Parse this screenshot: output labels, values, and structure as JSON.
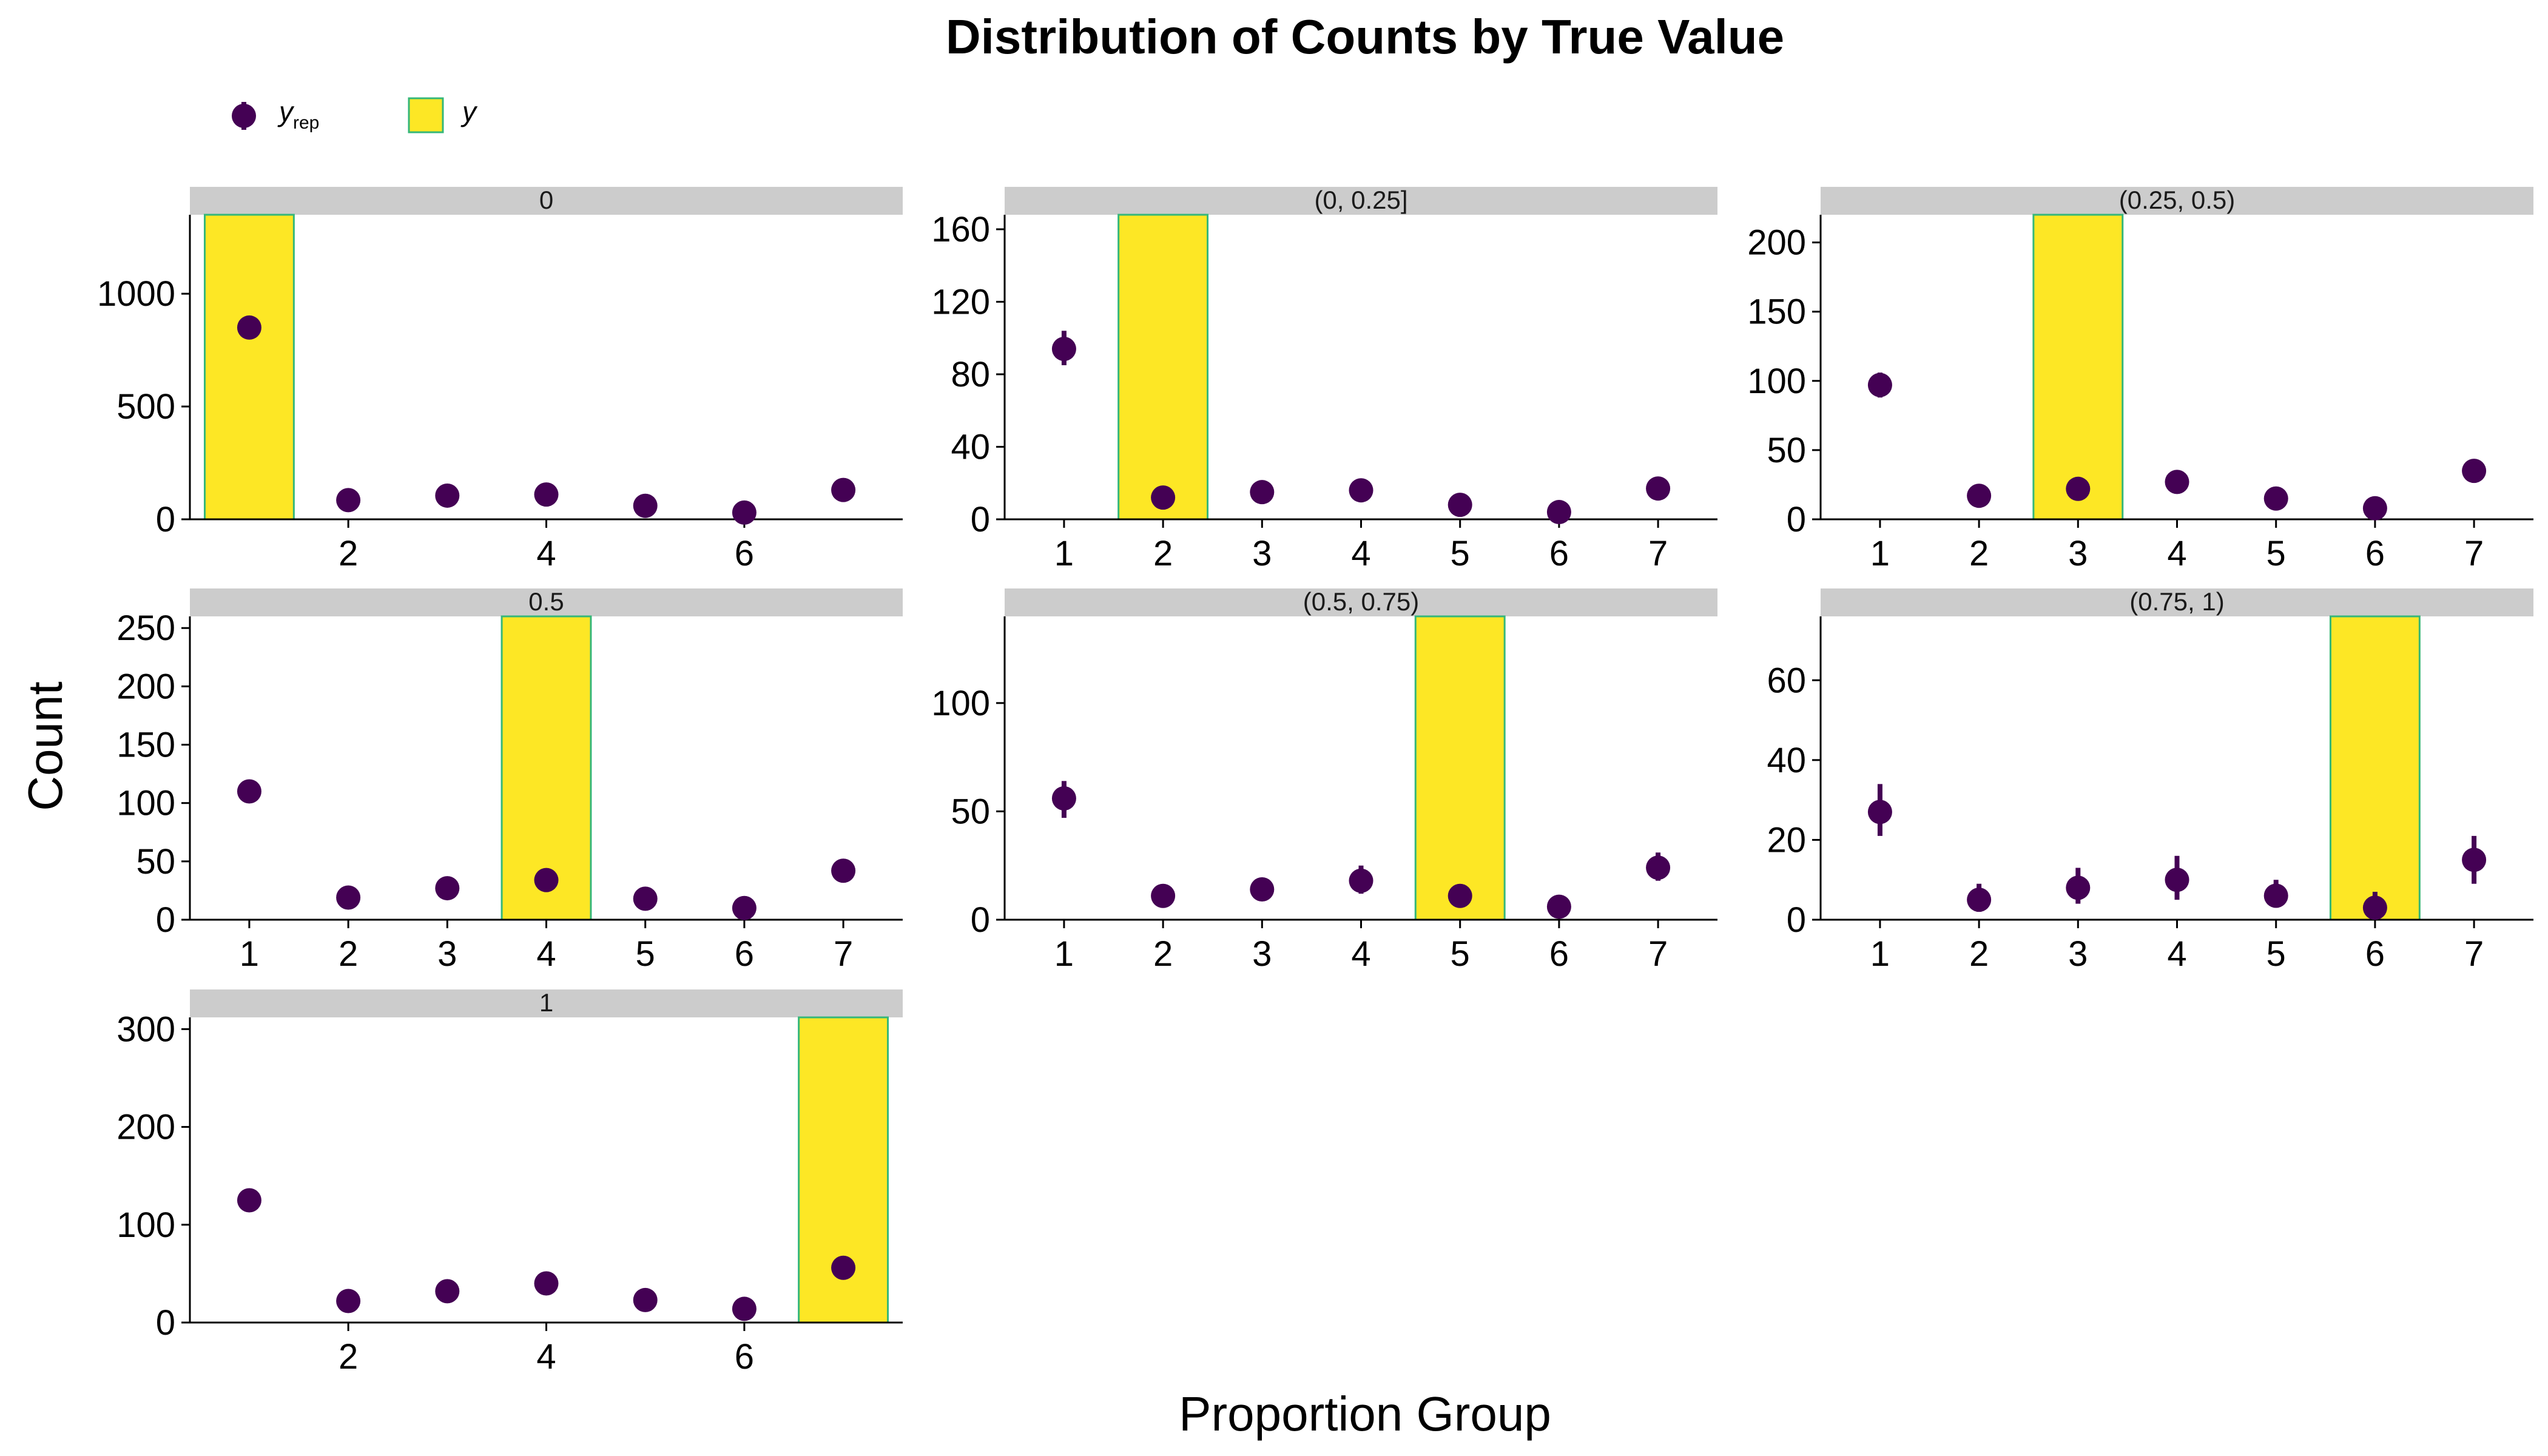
{
  "title": "Distribution of Counts by True Value",
  "xlabel": "Proportion Group",
  "ylabel": "Count",
  "legend": {
    "position": "top-left",
    "items": [
      {
        "key": "yrep",
        "label_main": "y",
        "label_sub": "rep",
        "color": "#440154",
        "kind": "point-range"
      },
      {
        "key": "y",
        "label_main": "y",
        "label_sub": "",
        "color": "#FDE725",
        "border": "#35B779",
        "kind": "bar"
      }
    ]
  },
  "colors": {
    "point": "#440154",
    "bar_fill": "#FDE725",
    "bar_border": "#35B779",
    "strip": "#CCCCCC"
  },
  "chart_data": [
    {
      "type": "bar+pointrange",
      "facet": "0",
      "ylim": [
        0,
        1350
      ],
      "yticks": [
        0,
        500,
        1000
      ],
      "xticks": [
        2,
        4,
        6
      ],
      "xlim": [
        0.4,
        7.6
      ],
      "bar": {
        "x": 1,
        "value": 1350
      },
      "points": [
        {
          "x": 1,
          "y": 850,
          "lo": 835,
          "hi": 865
        },
        {
          "x": 2,
          "y": 85,
          "lo": 78,
          "hi": 92
        },
        {
          "x": 3,
          "y": 105,
          "lo": 97,
          "hi": 113
        },
        {
          "x": 4,
          "y": 110,
          "lo": 102,
          "hi": 118
        },
        {
          "x": 5,
          "y": 60,
          "lo": 54,
          "hi": 66
        },
        {
          "x": 6,
          "y": 30,
          "lo": 26,
          "hi": 34
        },
        {
          "x": 7,
          "y": 130,
          "lo": 121,
          "hi": 139
        }
      ]
    },
    {
      "type": "bar+pointrange",
      "facet": "(0, 0.25]",
      "ylim": [
        0,
        168
      ],
      "yticks": [
        0,
        40,
        80,
        120,
        160
      ],
      "xticks": [
        1,
        2,
        3,
        4,
        5,
        6,
        7
      ],
      "xlim": [
        0.4,
        7.6
      ],
      "bar": {
        "x": 2,
        "value": 168
      },
      "points": [
        {
          "x": 1,
          "y": 94,
          "lo": 85,
          "hi": 104
        },
        {
          "x": 2,
          "y": 12,
          "lo": 9,
          "hi": 15
        },
        {
          "x": 3,
          "y": 15,
          "lo": 10,
          "hi": 20
        },
        {
          "x": 4,
          "y": 16,
          "lo": 11,
          "hi": 21
        },
        {
          "x": 5,
          "y": 8,
          "lo": 5,
          "hi": 11
        },
        {
          "x": 6,
          "y": 4,
          "lo": 2,
          "hi": 6
        },
        {
          "x": 7,
          "y": 17,
          "lo": 12,
          "hi": 23
        }
      ]
    },
    {
      "type": "bar+pointrange",
      "facet": "(0.25, 0.5)",
      "ylim": [
        0,
        220
      ],
      "yticks": [
        0,
        50,
        100,
        150,
        200
      ],
      "xticks": [
        1,
        2,
        3,
        4,
        5,
        6,
        7
      ],
      "xlim": [
        0.4,
        7.6
      ],
      "bar": {
        "x": 3,
        "value": 220
      },
      "points": [
        {
          "x": 1,
          "y": 97,
          "lo": 88,
          "hi": 106
        },
        {
          "x": 2,
          "y": 17,
          "lo": 13,
          "hi": 21
        },
        {
          "x": 3,
          "y": 22,
          "lo": 18,
          "hi": 26
        },
        {
          "x": 4,
          "y": 27,
          "lo": 22,
          "hi": 32
        },
        {
          "x": 5,
          "y": 15,
          "lo": 11,
          "hi": 19
        },
        {
          "x": 6,
          "y": 8,
          "lo": 5,
          "hi": 11
        },
        {
          "x": 7,
          "y": 35,
          "lo": 28,
          "hi": 42
        }
      ]
    },
    {
      "type": "bar+pointrange",
      "facet": "0.5",
      "ylim": [
        0,
        260
      ],
      "yticks": [
        0,
        50,
        100,
        150,
        200,
        250
      ],
      "xticks": [
        1,
        2,
        3,
        4,
        5,
        6,
        7
      ],
      "xlim": [
        0.4,
        7.6
      ],
      "bar": {
        "x": 4,
        "value": 260
      },
      "points": [
        {
          "x": 1,
          "y": 110,
          "lo": 100,
          "hi": 120
        },
        {
          "x": 2,
          "y": 19,
          "lo": 15,
          "hi": 23
        },
        {
          "x": 3,
          "y": 27,
          "lo": 22,
          "hi": 32
        },
        {
          "x": 4,
          "y": 34,
          "lo": 29,
          "hi": 39
        },
        {
          "x": 5,
          "y": 18,
          "lo": 14,
          "hi": 22
        },
        {
          "x": 6,
          "y": 10,
          "lo": 7,
          "hi": 13
        },
        {
          "x": 7,
          "y": 42,
          "lo": 36,
          "hi": 48
        }
      ]
    },
    {
      "type": "bar+pointrange",
      "facet": "(0.5, 0.75)",
      "ylim": [
        0,
        140
      ],
      "yticks": [
        0,
        50,
        100
      ],
      "xticks": [
        1,
        2,
        3,
        4,
        5,
        6,
        7
      ],
      "xlim": [
        0.4,
        7.6
      ],
      "bar": {
        "x": 5,
        "value": 140
      },
      "points": [
        {
          "x": 1,
          "y": 56,
          "lo": 47,
          "hi": 64
        },
        {
          "x": 2,
          "y": 11,
          "lo": 7,
          "hi": 15
        },
        {
          "x": 3,
          "y": 14,
          "lo": 9,
          "hi": 19
        },
        {
          "x": 4,
          "y": 18,
          "lo": 12,
          "hi": 25
        },
        {
          "x": 5,
          "y": 11,
          "lo": 7,
          "hi": 15
        },
        {
          "x": 6,
          "y": 6,
          "lo": 3,
          "hi": 9
        },
        {
          "x": 7,
          "y": 24,
          "lo": 18,
          "hi": 31
        }
      ]
    },
    {
      "type": "bar+pointrange",
      "facet": "(0.75, 1)",
      "ylim": [
        0,
        76
      ],
      "yticks": [
        0,
        20,
        40,
        60
      ],
      "xticks": [
        1,
        2,
        3,
        4,
        5,
        6,
        7
      ],
      "xlim": [
        0.4,
        7.6
      ],
      "bar": {
        "x": 6,
        "value": 76
      },
      "points": [
        {
          "x": 1,
          "y": 27,
          "lo": 21,
          "hi": 34
        },
        {
          "x": 2,
          "y": 5,
          "lo": 2,
          "hi": 9
        },
        {
          "x": 3,
          "y": 8,
          "lo": 4,
          "hi": 13
        },
        {
          "x": 4,
          "y": 10,
          "lo": 5,
          "hi": 16
        },
        {
          "x": 5,
          "y": 6,
          "lo": 3,
          "hi": 10
        },
        {
          "x": 6,
          "y": 3,
          "lo": 1,
          "hi": 7
        },
        {
          "x": 7,
          "y": 15,
          "lo": 9,
          "hi": 21
        }
      ]
    },
    {
      "type": "bar+pointrange",
      "facet": "1",
      "ylim": [
        0,
        312
      ],
      "yticks": [
        0,
        100,
        200,
        300
      ],
      "xticks": [
        2,
        4,
        6
      ],
      "xlim": [
        0.4,
        7.6
      ],
      "bar": {
        "x": 7,
        "value": 312
      },
      "points": [
        {
          "x": 1,
          "y": 125,
          "lo": 113,
          "hi": 137
        },
        {
          "x": 2,
          "y": 22,
          "lo": 18,
          "hi": 26
        },
        {
          "x": 3,
          "y": 32,
          "lo": 27,
          "hi": 37
        },
        {
          "x": 4,
          "y": 40,
          "lo": 34,
          "hi": 46
        },
        {
          "x": 5,
          "y": 23,
          "lo": 19,
          "hi": 27
        },
        {
          "x": 6,
          "y": 14,
          "lo": 10,
          "hi": 18
        },
        {
          "x": 7,
          "y": 56,
          "lo": 48,
          "hi": 64
        }
      ]
    }
  ]
}
